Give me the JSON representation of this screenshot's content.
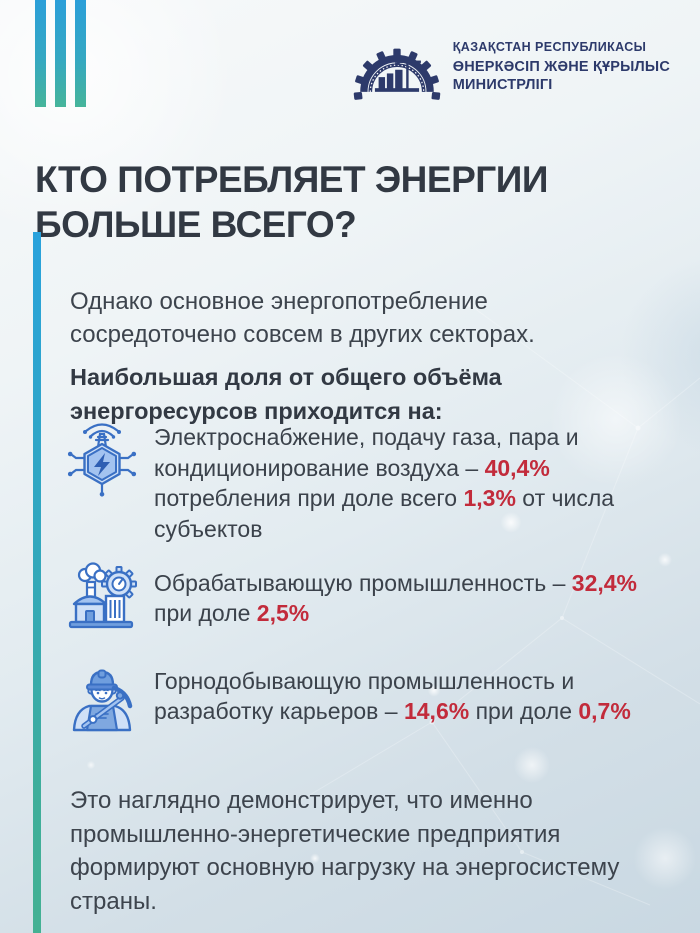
{
  "header": {
    "ministry_line1": "ҚАЗАҚСТАН РЕСПУБЛИКАСЫ",
    "ministry_line2": "ӨНЕРКӘСІП ЖӘНЕ ҚҰРЫЛЫС",
    "ministry_line3": "МИНИСТРЛІГІ"
  },
  "title": {
    "lines": [
      "КТО ПОТРЕБЛЯЕТ ЭНЕРГИИ",
      "БОЛЬШЕ ВСЕГО?"
    ]
  },
  "intro": {
    "paragraph_lines": [
      "Однако основное энергопотребление",
      "сосредоточено совсем в других секторах."
    ],
    "subhead_lines": [
      "Наибольшая доля от общего объёма",
      "энергоресурсов приходится на:"
    ]
  },
  "items": [
    {
      "icon": "power-grid-icon",
      "lines": [
        [
          {
            "t": "Электроснабжение, подачу газа, пара и"
          }
        ],
        [
          {
            "t": "кондиционирование воздуха – "
          },
          {
            "t": "40,4%",
            "hl": true
          }
        ],
        [
          {
            "t": "потребления при доле всего "
          },
          {
            "t": "1,3%",
            "hl": true
          },
          {
            "t": " от числа"
          }
        ],
        [
          {
            "t": "субъектов"
          }
        ]
      ]
    },
    {
      "icon": "factory-icon",
      "lines": [
        [
          {
            "t": "Обрабатывающую промышленность – "
          },
          {
            "t": "32,4%",
            "hl": true
          }
        ],
        [
          {
            "t": "при доле "
          },
          {
            "t": "2,5%",
            "hl": true
          }
        ]
      ]
    },
    {
      "icon": "miner-icon",
      "lines": [
        [
          {
            "t": "Горнодобывающую промышленность и"
          }
        ],
        [
          {
            "t": "разработку карьеров – "
          },
          {
            "t": "14,6%",
            "hl": true
          },
          {
            "t": " при доле "
          },
          {
            "t": "0,7%",
            "hl": true
          }
        ]
      ]
    }
  ],
  "conclusion": {
    "lines": [
      "Это наглядно демонстрирует, что именно",
      "промышленно-энергетические предприятия",
      "формируют основную нагрузку на энергосистему",
      "страны."
    ]
  },
  "colors": {
    "accent_red": "#c22b3b",
    "bar_gradient_top": "#29a2dc",
    "bar_gradient_bottom": "#44b193",
    "ministry_navy": "#2d3a6b",
    "heading_text": "#323943",
    "body_text": "#3d444d",
    "icon_blue": "#3a70c4"
  }
}
